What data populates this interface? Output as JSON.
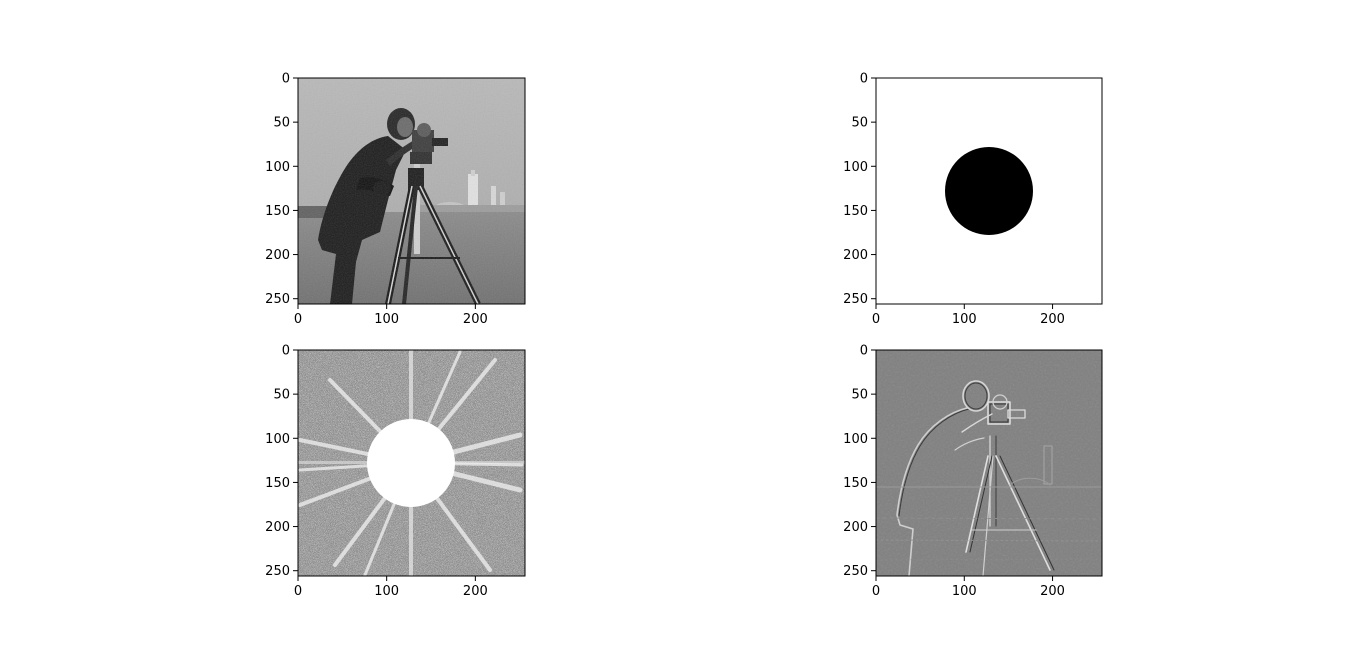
{
  "figure": {
    "background": "#ffffff",
    "axes": [
      {
        "id": "original",
        "content": "grayscale photo of a man operating a camera on a tripod",
        "x_ticks": [
          "0",
          "100",
          "200"
        ],
        "y_ticks": [
          "0",
          "50",
          "100",
          "150",
          "200",
          "250"
        ],
        "x_lim": [
          0,
          256
        ],
        "y_lim": [
          0,
          256
        ]
      },
      {
        "id": "mask",
        "content": "white field with a black filled disk at center",
        "x_ticks": [
          "0",
          "100",
          "200"
        ],
        "y_ticks": [
          "0",
          "50",
          "100",
          "150",
          "200",
          "250"
        ],
        "x_lim": [
          0,
          256
        ],
        "y_lim": [
          0,
          256
        ],
        "disk_center": [
          128,
          128
        ],
        "disk_radius": 50
      },
      {
        "id": "masked-spectrum",
        "content": "log fourier magnitude spectrum with central white disk masked",
        "x_ticks": [
          "0",
          "100",
          "200"
        ],
        "y_ticks": [
          "0",
          "50",
          "100",
          "150",
          "200",
          "250"
        ],
        "x_lim": [
          0,
          256
        ],
        "y_lim": [
          0,
          256
        ],
        "disk_center": [
          128,
          128
        ],
        "disk_radius": 50
      },
      {
        "id": "high-pass-result",
        "content": "high pass filtered image showing edges of the cameraman",
        "x_ticks": [
          "0",
          "100",
          "200"
        ],
        "y_ticks": [
          "0",
          "50",
          "100",
          "150",
          "200",
          "250"
        ],
        "x_lim": [
          0,
          256
        ],
        "y_lim": [
          0,
          256
        ]
      }
    ]
  }
}
